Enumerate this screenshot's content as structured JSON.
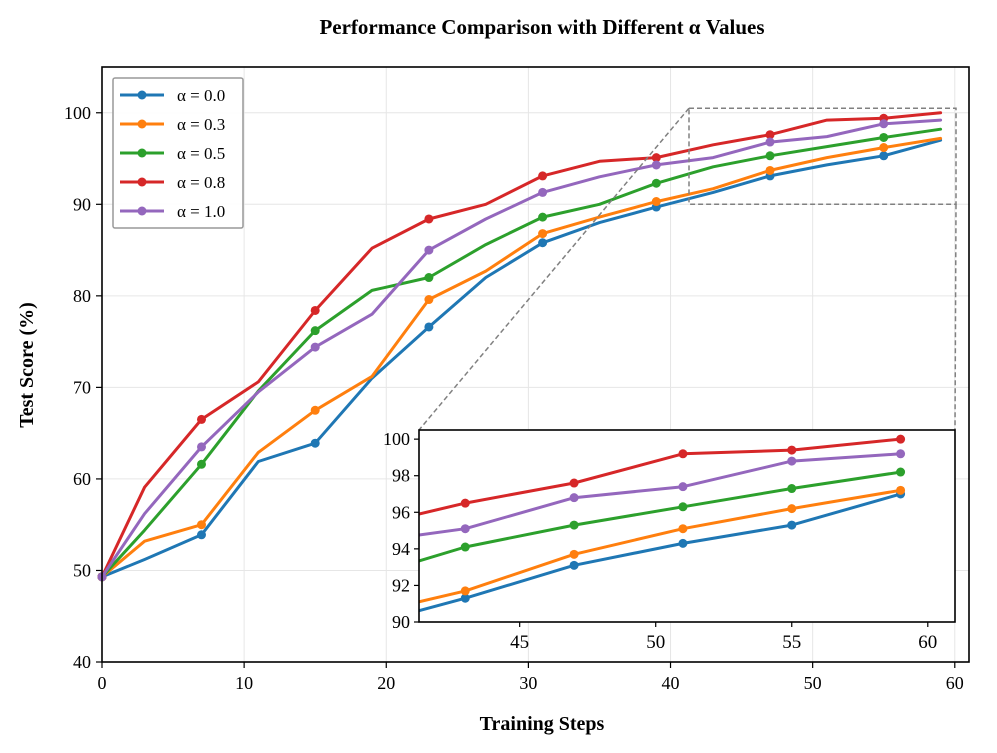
{
  "chart_data": {
    "type": "line",
    "title": "Performance Comparison with Different α Values",
    "xlabel": "Training Steps",
    "ylabel": "Test Score (%)",
    "xlim": [
      0,
      61
    ],
    "ylim": [
      40,
      105
    ],
    "xticks": [
      0,
      10,
      20,
      30,
      40,
      50,
      60
    ],
    "yticks": [
      40,
      50,
      60,
      70,
      80,
      90,
      100
    ],
    "grid": true,
    "legend_position": "top-left",
    "series": [
      {
        "name": "α = 0.0",
        "color": "#1f77b4",
        "points": [
          [
            0,
            49.3
          ],
          [
            3,
            51.2
          ],
          [
            7,
            53.9
          ],
          [
            11,
            61.9
          ],
          [
            15,
            63.9
          ],
          [
            19,
            71.0
          ],
          [
            23,
            76.6
          ],
          [
            27,
            82.0
          ],
          [
            31,
            85.8
          ],
          [
            35,
            88.0
          ],
          [
            39,
            89.7
          ],
          [
            43,
            91.3
          ],
          [
            47,
            93.1
          ],
          [
            51,
            94.3
          ],
          [
            55,
            95.3
          ],
          [
            59,
            97.0
          ]
        ],
        "markers": [
          [
            0,
            49.3
          ],
          [
            7,
            53.9
          ],
          [
            15,
            63.9
          ],
          [
            23,
            76.6
          ],
          [
            31,
            85.8
          ],
          [
            39,
            89.7
          ],
          [
            47,
            93.1
          ],
          [
            55,
            95.3
          ]
        ]
      },
      {
        "name": "α = 0.3",
        "color": "#ff7f0e",
        "points": [
          [
            0,
            49.3
          ],
          [
            3,
            53.2
          ],
          [
            7,
            55.0
          ],
          [
            11,
            62.9
          ],
          [
            15,
            67.5
          ],
          [
            19,
            71.2
          ],
          [
            23,
            79.6
          ],
          [
            27,
            82.7
          ],
          [
            31,
            86.8
          ],
          [
            35,
            88.6
          ],
          [
            39,
            90.3
          ],
          [
            43,
            91.7
          ],
          [
            47,
            93.7
          ],
          [
            51,
            95.1
          ],
          [
            55,
            96.2
          ],
          [
            59,
            97.2
          ]
        ],
        "markers": [
          [
            0,
            49.3
          ],
          [
            7,
            55.0
          ],
          [
            15,
            67.5
          ],
          [
            23,
            79.6
          ],
          [
            31,
            86.8
          ],
          [
            39,
            90.3
          ],
          [
            47,
            93.7
          ],
          [
            55,
            96.2
          ]
        ]
      },
      {
        "name": "α = 0.5",
        "color": "#2ca02c",
        "points": [
          [
            0,
            49.3
          ],
          [
            3,
            54.4
          ],
          [
            7,
            61.6
          ],
          [
            11,
            69.6
          ],
          [
            15,
            76.2
          ],
          [
            19,
            80.6
          ],
          [
            23,
            82.0
          ],
          [
            27,
            85.6
          ],
          [
            31,
            88.6
          ],
          [
            35,
            90.0
          ],
          [
            39,
            92.3
          ],
          [
            43,
            94.1
          ],
          [
            47,
            95.3
          ],
          [
            51,
            96.3
          ],
          [
            55,
            97.3
          ],
          [
            59,
            98.2
          ]
        ],
        "markers": [
          [
            0,
            49.3
          ],
          [
            7,
            61.6
          ],
          [
            15,
            76.2
          ],
          [
            23,
            82.0
          ],
          [
            31,
            88.6
          ],
          [
            39,
            92.3
          ],
          [
            47,
            95.3
          ],
          [
            55,
            97.3
          ]
        ]
      },
      {
        "name": "α = 0.8",
        "color": "#d62728",
        "points": [
          [
            0,
            49.3
          ],
          [
            3,
            59.1
          ],
          [
            7,
            66.5
          ],
          [
            11,
            70.6
          ],
          [
            15,
            78.4
          ],
          [
            19,
            85.2
          ],
          [
            23,
            88.4
          ],
          [
            27,
            90.0
          ],
          [
            31,
            93.1
          ],
          [
            35,
            94.7
          ],
          [
            39,
            95.1
          ],
          [
            43,
            96.5
          ],
          [
            47,
            97.6
          ],
          [
            51,
            99.2
          ],
          [
            55,
            99.4
          ],
          [
            59,
            100.0
          ]
        ],
        "markers": [
          [
            0,
            49.3
          ],
          [
            7,
            66.5
          ],
          [
            15,
            78.4
          ],
          [
            23,
            88.4
          ],
          [
            31,
            93.1
          ],
          [
            39,
            95.1
          ],
          [
            47,
            97.6
          ],
          [
            55,
            99.4
          ]
        ]
      },
      {
        "name": "α = 1.0",
        "color": "#9467bd",
        "points": [
          [
            0,
            49.3
          ],
          [
            3,
            56.2
          ],
          [
            7,
            63.5
          ],
          [
            11,
            69.5
          ],
          [
            15,
            74.4
          ],
          [
            19,
            78.0
          ],
          [
            23,
            85.0
          ],
          [
            27,
            88.4
          ],
          [
            31,
            91.3
          ],
          [
            35,
            93.0
          ],
          [
            39,
            94.3
          ],
          [
            43,
            95.1
          ],
          [
            47,
            96.8
          ],
          [
            51,
            97.4
          ],
          [
            55,
            98.8
          ],
          [
            59,
            99.2
          ]
        ],
        "markers": [
          [
            0,
            49.3
          ],
          [
            7,
            63.5
          ],
          [
            15,
            74.4
          ],
          [
            23,
            85.0
          ],
          [
            31,
            91.3
          ],
          [
            39,
            94.3
          ],
          [
            47,
            96.8
          ],
          [
            55,
            98.8
          ]
        ]
      }
    ],
    "inset": {
      "xlim": [
        41.3,
        61
      ],
      "ylim": [
        90,
        100.5
      ],
      "xticks": [
        45,
        50,
        55,
        60
      ],
      "yticks": [
        90,
        92,
        94,
        96,
        98,
        100
      ],
      "marker_x": [
        43,
        47,
        51,
        55,
        59
      ]
    }
  }
}
